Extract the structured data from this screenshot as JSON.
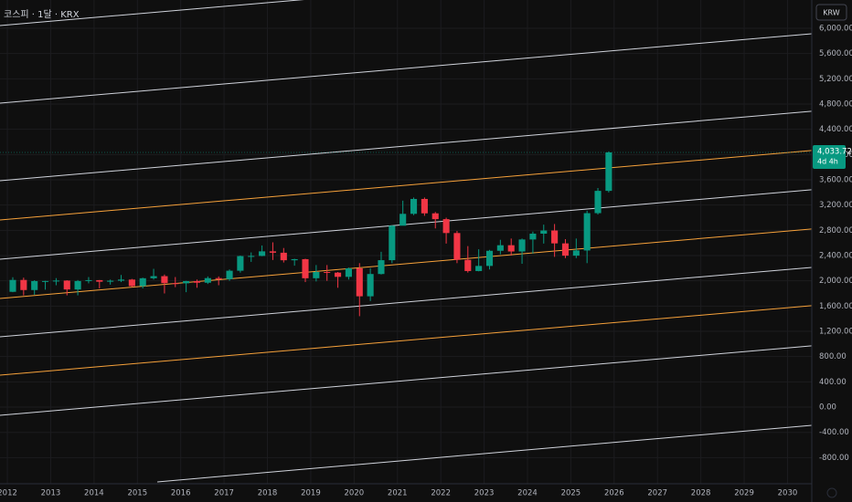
{
  "chart_data": {
    "type": "candlestick",
    "title": "코스피 · 1달 · KRX",
    "currency": "KRW",
    "x": [
      2012.125,
      2012.375,
      2012.625,
      2012.875,
      2013.125,
      2013.375,
      2013.625,
      2013.875,
      2014.125,
      2014.375,
      2014.625,
      2014.875,
      2015.125,
      2015.375,
      2015.625,
      2015.875,
      2016.125,
      2016.375,
      2016.625,
      2016.875,
      2017.125,
      2017.375,
      2017.625,
      2017.875,
      2018.125,
      2018.375,
      2018.625,
      2018.875,
      2019.125,
      2019.375,
      2019.625,
      2019.875,
      2020.125,
      2020.375,
      2020.625,
      2020.875,
      2021.125,
      2021.375,
      2021.625,
      2021.875,
      2022.125,
      2022.375,
      2022.625,
      2022.875,
      2023.125,
      2023.375,
      2023.625,
      2023.875,
      2024.125,
      2024.375,
      2024.625,
      2024.875,
      2025.125,
      2025.375,
      2025.625,
      2025.875
    ],
    "open": [
      1826,
      2014,
      1854,
      1996,
      1997,
      2004,
      1863,
      1997,
      2011,
      1986,
      2002,
      2020,
      1916,
      2041,
      2074,
      1963,
      1961,
      1996,
      1970,
      2043,
      2026,
      2160,
      2392,
      2394,
      2467,
      2445,
      2326,
      2343,
      2041,
      2140,
      2130,
      2063,
      2198,
      1755,
      2108,
      2327,
      2873,
      3061,
      3297,
      3069,
      2977,
      2757,
      2332,
      2155,
      2236,
      2476,
      2564,
      2465,
      2655,
      2747,
      2797,
      2593,
      2399,
      2481,
      3072,
      3425
    ],
    "high": [
      2057,
      2050,
      2010,
      2000,
      2043,
      2010,
      2012,
      2060,
      2013,
      2020,
      2093,
      2030,
      2050,
      2190,
      2100,
      2060,
      2000,
      2020,
      2070,
      2070,
      2180,
      2400,
      2450,
      2560,
      2610,
      2520,
      2350,
      2350,
      2250,
      2250,
      2140,
      2210,
      2280,
      2200,
      2460,
      2880,
      3270,
      3320,
      3320,
      3090,
      3000,
      2790,
      2550,
      2500,
      2490,
      2650,
      2670,
      2670,
      2780,
      2890,
      2900,
      2660,
      2670,
      3110,
      3470,
      4050
    ],
    "low": [
      1820,
      1770,
      1780,
      1860,
      1930,
      1770,
      1770,
      1960,
      1880,
      1940,
      1980,
      1900,
      1880,
      2020,
      1800,
      1900,
      1820,
      1890,
      1950,
      1930,
      2000,
      2130,
      2300,
      2390,
      2330,
      2290,
      2240,
      1980,
      1990,
      2000,
      1890,
      2020,
      1440,
      1680,
      2100,
      2280,
      2880,
      3040,
      3030,
      2830,
      2590,
      2280,
      2130,
      2150,
      2180,
      2420,
      2400,
      2270,
      2430,
      2590,
      2380,
      2360,
      2360,
      2280,
      3050,
      3400
    ],
    "close": [
      2014,
      1854,
      1996,
      1997,
      2004,
      1863,
      1997,
      2011,
      1986,
      2002,
      2020,
      1916,
      2041,
      2074,
      1963,
      1961,
      1996,
      1970,
      2043,
      2026,
      2160,
      2392,
      2394,
      2467,
      2445,
      2326,
      2343,
      2041,
      2140,
      2130,
      2063,
      2198,
      1755,
      2108,
      2327,
      2873,
      3061,
      3297,
      3069,
      2977,
      2757,
      2332,
      2155,
      2236,
      2476,
      2564,
      2465,
      2655,
      2747,
      2797,
      2593,
      2399,
      2481,
      3072,
      3425,
      4034
    ],
    "up_color": "#089981",
    "down_color": "#f23645",
    "channel_lines": [
      {
        "color": "#d1d4dc",
        "x": [
          2011.83,
          2030.56
        ],
        "y": [
          6043,
          7143
        ]
      },
      {
        "color": "#d1d4dc",
        "x": [
          2011.83,
          2030.56
        ],
        "y": [
          4814,
          5914
        ]
      },
      {
        "color": "#d1d4dc",
        "x": [
          2011.83,
          2030.56
        ],
        "y": [
          3586,
          4686
        ]
      },
      {
        "color": "#f7a23b",
        "x": [
          2011.83,
          2030.56
        ],
        "y": [
          2964,
          4064
        ]
      },
      {
        "color": "#d1d4dc",
        "x": [
          2011.83,
          2030.56
        ],
        "y": [
          2342,
          3442
        ]
      },
      {
        "color": "#f7a23b",
        "x": [
          2011.83,
          2030.56
        ],
        "y": [
          1721,
          2821
        ]
      },
      {
        "color": "#d1d4dc",
        "x": [
          2011.83,
          2030.56
        ],
        "y": [
          1113,
          2213
        ]
      },
      {
        "color": "#f7a23b",
        "x": [
          2011.83,
          2030.56
        ],
        "y": [
          506,
          1606
        ]
      },
      {
        "color": "#d1d4dc",
        "x": [
          2011.83,
          2030.56
        ],
        "y": [
          -130,
          970
        ]
      },
      {
        "color": "#d1d4dc",
        "x": [
          2015.46,
          2030.56
        ],
        "y": [
          -1185,
          -288
        ]
      }
    ],
    "last_price": 4033.72,
    "last_price_label": "4,033.72",
    "countdown": "4d 4h",
    "xlim": [
      2011.83,
      2030.56
    ],
    "ylim": [
      -1214,
      6448
    ],
    "xticks": [
      2012,
      2013,
      2014,
      2015,
      2016,
      2017,
      2018,
      2019,
      2020,
      2021,
      2022,
      2023,
      2024,
      2025,
      2026,
      2027,
      2028,
      2029,
      2030
    ],
    "yticks": [
      {
        "value": -800,
        "label": "-800.00"
      },
      {
        "value": -400,
        "label": "-400.00"
      },
      {
        "value": 0,
        "label": "0.00"
      },
      {
        "value": 400,
        "label": "400.00"
      },
      {
        "value": 800,
        "label": "800.00"
      },
      {
        "value": 1200,
        "label": "1,200.00"
      },
      {
        "value": 1600,
        "label": "1,600.00"
      },
      {
        "value": 2000,
        "label": "2,000.00"
      },
      {
        "value": 2400,
        "label": "2,400.00"
      },
      {
        "value": 2800,
        "label": "2,800.00"
      },
      {
        "value": 3200,
        "label": "3,200.00"
      },
      {
        "value": 3600,
        "label": "3,600.00"
      },
      {
        "value": 4000,
        "label": "4,000.00"
      },
      {
        "value": 4400,
        "label": "4,400.00"
      },
      {
        "value": 4800,
        "label": "4,800.00"
      },
      {
        "value": 5200,
        "label": "5,200.00"
      },
      {
        "value": 5600,
        "label": "5,600.00"
      },
      {
        "value": 6000,
        "label": "6,000.00"
      }
    ],
    "grid": true
  }
}
